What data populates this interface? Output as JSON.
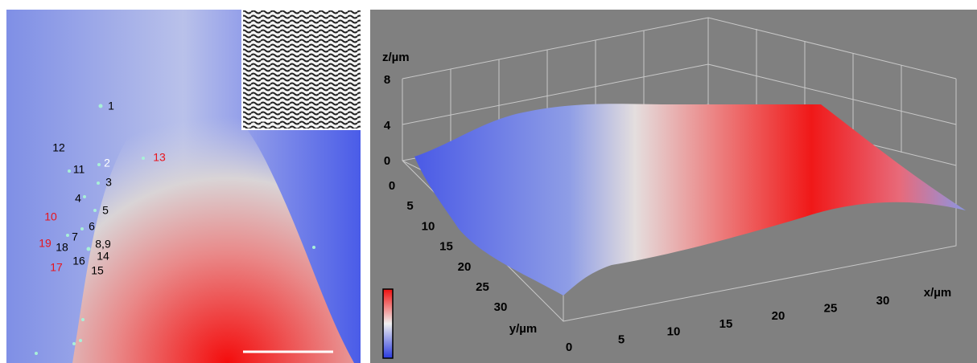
{
  "left_panel": {
    "point_labels": [
      {
        "label": "1",
        "color": "#000000"
      },
      {
        "label": "12",
        "color": "#000000"
      },
      {
        "label": "11",
        "color": "#000000"
      },
      {
        "label": "2",
        "color": "#ffffff"
      },
      {
        "label": "13",
        "color": "#e8141c"
      },
      {
        "label": "3",
        "color": "#000000"
      },
      {
        "label": "4",
        "color": "#000000"
      },
      {
        "label": "5",
        "color": "#000000"
      },
      {
        "label": "10",
        "color": "#e8141c"
      },
      {
        "label": "6",
        "color": "#000000"
      },
      {
        "label": "7",
        "color": "#000000"
      },
      {
        "label": "8,9",
        "color": "#000000"
      },
      {
        "label": "19",
        "color": "#e8141c"
      },
      {
        "label": "18",
        "color": "#000000"
      },
      {
        "label": "14",
        "color": "#000000"
      },
      {
        "label": "16",
        "color": "#000000"
      },
      {
        "label": "17",
        "color": "#e8141c"
      },
      {
        "label": "15",
        "color": "#000000"
      }
    ]
  },
  "right_panel": {
    "z_axis_label": "z/µm",
    "z_ticks": [
      "0",
      "4",
      "8"
    ],
    "y_axis_label": "y/µm",
    "y_ticks": [
      "0",
      "5",
      "10",
      "15",
      "20",
      "25",
      "30"
    ],
    "x_axis_label": "x/µm",
    "x_ticks": [
      "0",
      "5",
      "10",
      "15",
      "20",
      "25",
      "30"
    ]
  }
}
